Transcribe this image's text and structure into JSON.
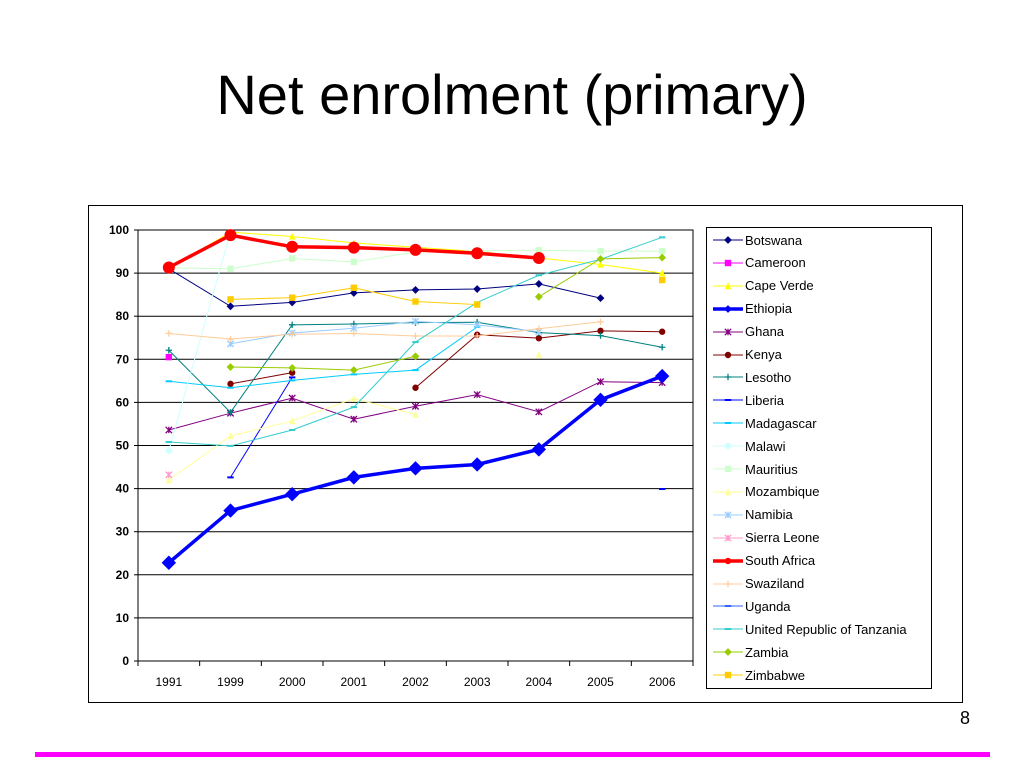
{
  "title": "Net enrolment (primary)",
  "page_number": "8",
  "colors": {
    "rule": "#ff00ff"
  },
  "chart_data": {
    "type": "line",
    "title": "",
    "xlabel": "",
    "ylabel": "",
    "categories": [
      "1991",
      "1999",
      "2000",
      "2001",
      "2002",
      "2003",
      "2004",
      "2005",
      "2006"
    ],
    "ylim": [
      0,
      100
    ],
    "yticks": [
      0,
      10,
      20,
      30,
      40,
      50,
      60,
      70,
      80,
      90,
      100
    ],
    "grid": "horizontal",
    "legend_position": "right",
    "series": [
      {
        "name": "Botswana",
        "color": "#000080",
        "marker": "diamond",
        "values": [
          91,
          82.3,
          83.2,
          85.4,
          86.1,
          86.3,
          87.5,
          84.2,
          null
        ]
      },
      {
        "name": "Cameroon",
        "color": "#ff00ff",
        "marker": "square",
        "values": [
          70.5,
          null,
          null,
          null,
          null,
          null,
          null,
          null,
          null
        ]
      },
      {
        "name": "Cape Verde",
        "color": "#ffff00",
        "marker": "triangle",
        "values": [
          91,
          99.5,
          98.5,
          97,
          96,
          95,
          93.5,
          92,
          90
        ]
      },
      {
        "name": "Ethiopia",
        "color": "#0000ff",
        "marker": "diamond",
        "thick": true,
        "values": [
          22.8,
          34.9,
          38.7,
          42.6,
          44.7,
          45.6,
          49.1,
          60.6,
          66.1
        ]
      },
      {
        "name": "Ghana",
        "color": "#800080",
        "marker": "star",
        "values": [
          53.6,
          57.5,
          61,
          56.1,
          59.1,
          61.8,
          57.8,
          64.8,
          64.6
        ]
      },
      {
        "name": "Kenya",
        "color": "#800000",
        "marker": "circle",
        "values": [
          null,
          64.3,
          66.9,
          null,
          63.4,
          75.7,
          74.9,
          76.6,
          76.4
        ]
      },
      {
        "name": "Lesotho",
        "color": "#008080",
        "marker": "plus",
        "values": [
          72.1,
          57.7,
          78,
          78.2,
          78.5,
          78.6,
          76.2,
          75.5,
          72.8
        ]
      },
      {
        "name": "Liberia",
        "color": "#0000ff",
        "marker": "dash",
        "values": [
          null,
          42.6,
          65.8,
          null,
          null,
          null,
          null,
          null,
          39.9
        ]
      },
      {
        "name": "Madagascar",
        "color": "#00ccff",
        "marker": "dash",
        "values": [
          64.9,
          63.4,
          65.1,
          66.5,
          67.5,
          77.5,
          null,
          null,
          null
        ]
      },
      {
        "name": "Malawi",
        "color": "#ccffff",
        "marker": "diamond",
        "values": [
          48.8,
          99.5,
          null,
          null,
          null,
          null,
          null,
          null,
          null
        ]
      },
      {
        "name": "Mauritius",
        "color": "#ccffcc",
        "marker": "square",
        "values": [
          91.2,
          91,
          93.4,
          92.6,
          94.9,
          95.2,
          95.3,
          95.1,
          95.1
        ]
      },
      {
        "name": "Mozambique",
        "color": "#ffff99",
        "marker": "triangle",
        "values": [
          42,
          52.2,
          55.7,
          60.9,
          57.2,
          null,
          71.1,
          null,
          null
        ]
      },
      {
        "name": "Namibia",
        "color": "#99ccff",
        "marker": "star",
        "values": [
          null,
          73.6,
          76.1,
          77.2,
          78.8,
          78,
          76.4,
          null,
          null
        ]
      },
      {
        "name": "Sierra Leone",
        "color": "#ff99cc",
        "marker": "star",
        "values": [
          43.2,
          null,
          null,
          null,
          null,
          null,
          null,
          null,
          null
        ]
      },
      {
        "name": "South Africa",
        "color": "#ff0000",
        "marker": "circle",
        "thick": true,
        "values": [
          91.3,
          98.8,
          96.1,
          95.9,
          95.4,
          94.6,
          93.5,
          null,
          null
        ]
      },
      {
        "name": "Swaziland",
        "color": "#ffcc99",
        "marker": "plus",
        "values": [
          76,
          74.7,
          75.8,
          76,
          75.4,
          75.4,
          77.1,
          78.7,
          null
        ]
      },
      {
        "name": "Uganda",
        "color": "#3366ff",
        "marker": "dash",
        "values": [
          null,
          null,
          null,
          null,
          null,
          null,
          null,
          null,
          null
        ]
      },
      {
        "name": "United Republic of Tanzania",
        "color": "#33cccc",
        "marker": "dash",
        "values": [
          50.8,
          49.9,
          53.6,
          58.9,
          74,
          83.2,
          89.5,
          93.2,
          98.3
        ]
      },
      {
        "name": "Zambia",
        "color": "#99cc00",
        "marker": "diamond",
        "values": [
          null,
          68.2,
          68,
          67.5,
          70.7,
          null,
          84.5,
          93.3,
          93.6
        ]
      },
      {
        "name": "Zimbabwe",
        "color": "#ffcc00",
        "marker": "square",
        "values": [
          null,
          83.9,
          84.3,
          86.6,
          83.4,
          82.7,
          null,
          null,
          88.4
        ]
      }
    ]
  }
}
